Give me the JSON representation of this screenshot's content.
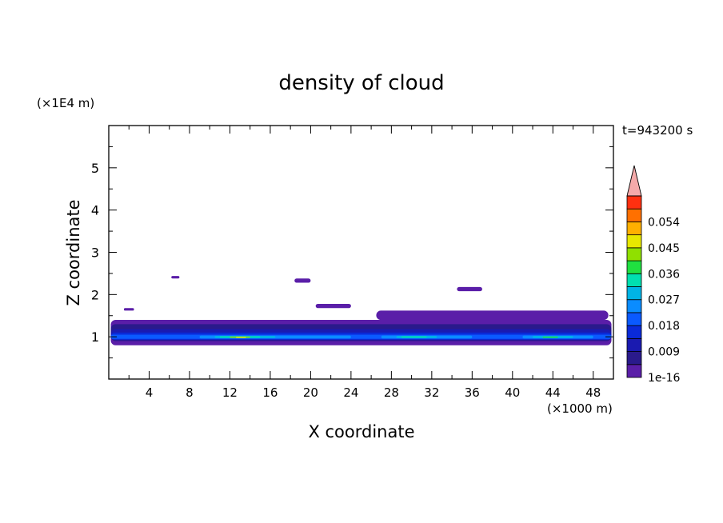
{
  "chart_data": {
    "type": "heatmap",
    "title": "density of cloud",
    "xlabel": "X coordinate",
    "ylabel": "Z coordinate",
    "x_unit": "(×1000 m)",
    "y_unit": "(×1E4 m)",
    "time_label": "t=943200 s",
    "xlim": [
      0,
      50
    ],
    "ylim": [
      0,
      6
    ],
    "x_ticks": [
      4,
      8,
      12,
      16,
      20,
      24,
      28,
      32,
      36,
      40,
      44,
      48
    ],
    "x_tick_labels": [
      "4",
      "8",
      "12",
      "16",
      "20",
      "24",
      "28",
      "32",
      "36",
      "40",
      "44",
      "48"
    ],
    "y_ticks": [
      1,
      2,
      3,
      4,
      5
    ],
    "y_tick_labels": [
      "1",
      "2",
      "3",
      "4",
      "5"
    ],
    "colorbar": {
      "levels": [
        "1e-16",
        "0.0045",
        "0.009",
        "0.0135",
        "0.018",
        "0.0225",
        "0.027",
        "0.0315",
        "0.036",
        "0.0405",
        "0.045",
        "0.0495",
        "0.054",
        "0.0585"
      ],
      "colors": [
        "#5a1ea8",
        "#2a1a8c",
        "#1a1ab0",
        "#0a2ad8",
        "#0a5aff",
        "#0a8cff",
        "#00b4e6",
        "#00e0b0",
        "#20e040",
        "#90e000",
        "#e8e800",
        "#ffb000",
        "#ff7000",
        "#ff3010"
      ],
      "over_color": "#f4aaaa",
      "tick_labels": [
        "1e-16",
        "0.009",
        "0.018",
        "0.027",
        "0.036",
        "0.045",
        "0.054"
      ],
      "tick_level_index": [
        0,
        2,
        4,
        6,
        8,
        10,
        12
      ]
    },
    "regions": [
      {
        "level": 0,
        "x": [
          0.2,
          49.8
        ],
        "z": [
          0.8,
          1.4
        ]
      },
      {
        "level": 0,
        "x": [
          1.5,
          2.5
        ],
        "z": [
          1.62,
          1.68
        ]
      },
      {
        "level": 0,
        "x": [
          6.2,
          7.0
        ],
        "z": [
          2.38,
          2.44
        ]
      },
      {
        "level": 0,
        "x": [
          18.4,
          20.0
        ],
        "z": [
          2.28,
          2.38
        ]
      },
      {
        "level": 0,
        "x": [
          20.5,
          24.0
        ],
        "z": [
          1.68,
          1.78
        ]
      },
      {
        "level": 0,
        "x": [
          34.5,
          37.0
        ],
        "z": [
          2.08,
          2.18
        ]
      },
      {
        "level": 0,
        "x": [
          26.5,
          49.5
        ],
        "z": [
          1.4,
          1.62
        ]
      },
      {
        "level": 1,
        "x": [
          0.2,
          49.8
        ],
        "z": [
          0.9,
          1.3
        ]
      },
      {
        "level": 2,
        "x": [
          0.2,
          49.8
        ],
        "z": [
          0.92,
          1.18
        ]
      },
      {
        "level": 3,
        "x": [
          0.2,
          49.8
        ],
        "z": [
          0.93,
          1.1
        ]
      },
      {
        "level": 4,
        "x": [
          0.2,
          49.8
        ],
        "z": [
          0.95,
          1.05
        ]
      },
      {
        "level": 5,
        "x": [
          9.0,
          24.0
        ],
        "z": [
          0.96,
          1.03
        ]
      },
      {
        "level": 6,
        "x": [
          10.5,
          16.5
        ],
        "z": [
          0.97,
          1.02
        ]
      },
      {
        "level": 7,
        "x": [
          11.0,
          15.0
        ],
        "z": [
          0.98,
          1.01
        ]
      },
      {
        "level": 9,
        "x": [
          12.0,
          14.0
        ],
        "z": [
          0.985,
          1.005
        ]
      },
      {
        "level": 10,
        "x": [
          12.6,
          13.6
        ],
        "z": [
          0.99,
          1.0
        ]
      },
      {
        "level": 5,
        "x": [
          27.0,
          36.0
        ],
        "z": [
          0.96,
          1.03
        ]
      },
      {
        "level": 6,
        "x": [
          28.5,
          32.5
        ],
        "z": [
          0.97,
          1.02
        ]
      },
      {
        "level": 7,
        "x": [
          29.0,
          31.5
        ],
        "z": [
          0.98,
          1.01
        ]
      },
      {
        "level": 5,
        "x": [
          41.0,
          48.0
        ],
        "z": [
          0.96,
          1.03
        ]
      },
      {
        "level": 6,
        "x": [
          42.0,
          46.0
        ],
        "z": [
          0.97,
          1.02
        ]
      },
      {
        "level": 8,
        "x": [
          43.0,
          44.5
        ],
        "z": [
          0.985,
          1.005
        ]
      }
    ]
  }
}
